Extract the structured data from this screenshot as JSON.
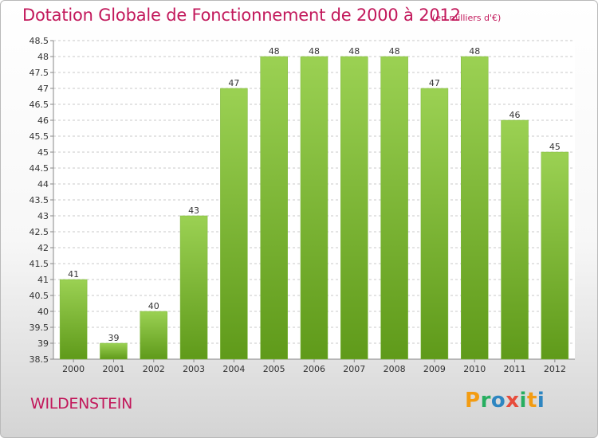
{
  "title": "Dotation Globale de Fonctionnement de 2000 à 2012",
  "unit": "(en milliers d'€)",
  "commune": "WILDENSTEIN",
  "logo": {
    "letters": [
      "P",
      "r",
      "o",
      "x",
      "i",
      "t",
      "i"
    ],
    "colors": [
      "#f39c12",
      "#27ae60",
      "#2e86c1",
      "#e74c3c",
      "#27ae60",
      "#f39c12",
      "#2e86c1"
    ]
  },
  "colors": {
    "accent": "#c2185b",
    "bar_top": "#9bd153",
    "bar_bottom": "#5f9a1a"
  },
  "chart_data": {
    "type": "bar",
    "categories": [
      "2000",
      "2001",
      "2002",
      "2003",
      "2004",
      "2005",
      "2006",
      "2007",
      "2008",
      "2009",
      "2010",
      "2011",
      "2012"
    ],
    "values": [
      41,
      39,
      40,
      43,
      47,
      48,
      48,
      48,
      48,
      47,
      48,
      46,
      45
    ],
    "data_labels": [
      "41",
      "39",
      "40",
      "43",
      "47",
      "48",
      "48",
      "48",
      "48",
      "47",
      "48",
      "46",
      "45"
    ],
    "ylim": [
      38.5,
      48.5
    ],
    "yticks": [
      "38.5",
      "39",
      "39.5",
      "40",
      "40.5",
      "41",
      "41.5",
      "42",
      "42.5",
      "43",
      "43.5",
      "44",
      "44.5",
      "45",
      "45.5",
      "46",
      "46.5",
      "47",
      "47.5",
      "48",
      "48.5"
    ],
    "grid": true,
    "title": "Dotation Globale de Fonctionnement de 2000 à 2012",
    "xlabel": "",
    "ylabel": ""
  }
}
